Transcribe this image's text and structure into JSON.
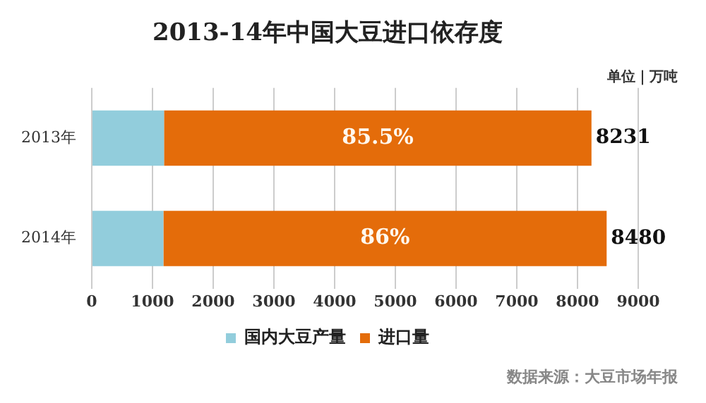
{
  "chart_data": {
    "type": "bar",
    "orientation": "horizontal",
    "stacked": true,
    "title": "2013-14年中国大豆进口依存度",
    "categories": [
      "2013年",
      "2014年"
    ],
    "series": [
      {
        "name": "国内大豆产量",
        "color": "#92cddc",
        "values": [
          1190,
          1180
        ]
      },
      {
        "name": "进口量",
        "color": "#e46c0a",
        "values": [
          7040,
          7300
        ]
      }
    ],
    "totals": [
      "8231",
      "8480"
    ],
    "xlim": [
      0,
      9000
    ],
    "xticks": [
      0,
      1000,
      2000,
      3000,
      4000,
      5000,
      6000,
      7000,
      8000,
      9000
    ],
    "grid": "x",
    "legend": "bottom",
    "annotations": [
      "单位｜万吨",
      "数据来源：大豆市场年报",
      "85.5%",
      "86%"
    ]
  }
}
